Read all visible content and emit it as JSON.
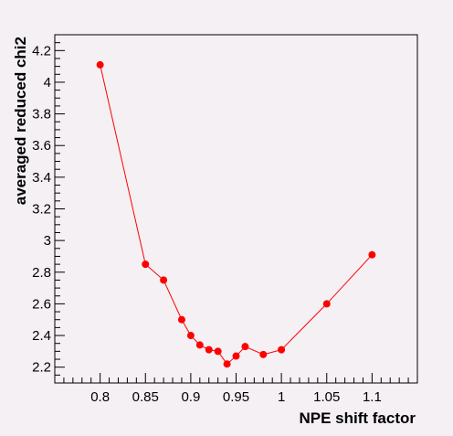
{
  "chart_data": {
    "type": "line",
    "title": "",
    "xlabel": "NPE shift factor",
    "ylabel": "averaged reduced chi2",
    "xlim": [
      0.75,
      1.15
    ],
    "ylim": [
      2.1,
      4.3
    ],
    "x_ticks": [
      0.8,
      0.85,
      0.9,
      0.95,
      1.0,
      1.05,
      1.1
    ],
    "x_tick_labels": [
      "0.8",
      "0.85",
      "0.9",
      "0.95",
      "1",
      "1.05",
      "1.1"
    ],
    "y_ticks": [
      2.2,
      2.4,
      2.6,
      2.8,
      3.0,
      3.2,
      3.4,
      3.6,
      3.8,
      4.0,
      4.2
    ],
    "y_tick_labels": [
      "2.2",
      "2.4",
      "2.6",
      "2.8",
      "3",
      "3.2",
      "3.4",
      "3.6",
      "3.8",
      "4",
      "4.2"
    ],
    "grid": false,
    "legend": false,
    "colors": {
      "background": "#f4f0f4",
      "axes": "#000000",
      "series": "#ff0000"
    },
    "series": [
      {
        "x": [
          0.8,
          0.85,
          0.87,
          0.89,
          0.9,
          0.91,
          0.92,
          0.93,
          0.94,
          0.95,
          0.96,
          0.98,
          1.0,
          1.05,
          1.1
        ],
        "y": [
          4.11,
          2.85,
          2.75,
          2.5,
          2.4,
          2.34,
          2.31,
          2.3,
          2.22,
          2.27,
          2.33,
          2.28,
          2.31,
          2.6,
          2.91
        ]
      }
    ]
  }
}
